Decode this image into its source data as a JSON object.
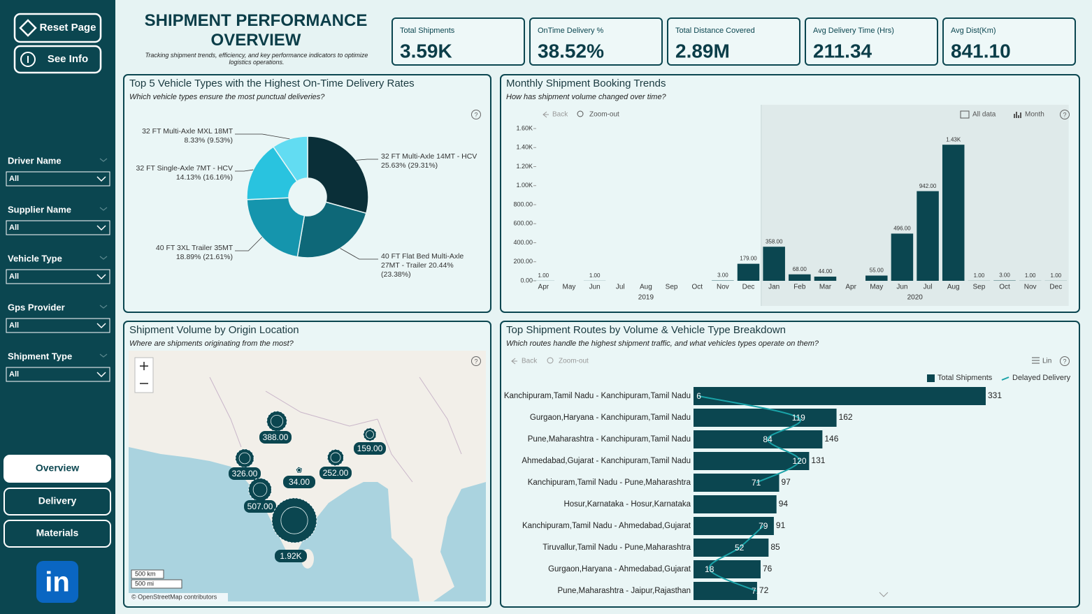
{
  "header": {
    "title": "SHIPMENT PERFORMANCE OVERVIEW",
    "subtitle": "Tracking shipment trends, efficiency, and key performance indicators to optimize logistics operations."
  },
  "help_icon": "?",
  "sidebar": {
    "buttons": [
      "Reset Page",
      "See Info"
    ],
    "filters": [
      {
        "label": "Driver Name",
        "value": "All"
      },
      {
        "label": "Supplier Name",
        "value": "All"
      },
      {
        "label": "Vehicle Type",
        "value": "All"
      },
      {
        "label": "Gps Provider",
        "value": "All"
      },
      {
        "label": "Shipment Type",
        "value": "All"
      }
    ],
    "nav": [
      "Overview",
      "Delivery",
      "Materials"
    ],
    "logo": "in"
  },
  "kpis": [
    {
      "label": "Total Shipments",
      "value": "3.59K"
    },
    {
      "label": "OnTime Delivery %",
      "value": "38.52%"
    },
    {
      "label": "Total Distance Covered",
      "value": "2.89M"
    },
    {
      "label": "Avg Delivery Time (Hrs)",
      "value": "211.34"
    },
    {
      "label": "Avg Dist(Km)",
      "value": "841.10"
    }
  ],
  "chart_data": [
    {
      "type": "pie",
      "title": "Top 5 Vehicle Types with the Highest On-Time Delivery Rates",
      "subtitle": "Which vehicle types ensure the most punctual deliveries?",
      "categories": [
        "32 FT Multi-Axle 14MT - HCV",
        "40 FT Flat Bed Multi-Axle 27MT - Trailer",
        "40 FT 3XL Trailer 35MT",
        "32 FT Single-Axle 7MT - HCV",
        "32 FT Multi-Axle MXL 18MT"
      ],
      "rate_labels": [
        "25.63%",
        "20.44%",
        "18.89%",
        "14.13%",
        "8.33%"
      ],
      "values": [
        29.31,
        23.38,
        21.61,
        16.16,
        9.53
      ],
      "value_labels": [
        "(29.31%)",
        "(23.38%)",
        "(21.61%)",
        "(16.16%)",
        "(9.53%)"
      ],
      "colors": [
        "#0a2f38",
        "#0e6878",
        "#1595ad",
        "#29c3df",
        "#62dcf2"
      ]
    },
    {
      "type": "bar",
      "title": "Monthly Shipment Booking Trends",
      "subtitle": "How has shipment volume changed over time?",
      "toolbar": [
        "Back",
        "Zoom-out",
        "All data",
        "Month"
      ],
      "categories": [
        "Apr",
        "May",
        "Jun",
        "Jul",
        "Aug",
        "Sep",
        "Oct",
        "Nov",
        "Dec",
        "Jan",
        "Feb",
        "Mar",
        "Apr",
        "May",
        "Jun",
        "Jul",
        "Aug",
        "Sep",
        "Oct",
        "Nov",
        "Dec"
      ],
      "years": [
        "2019",
        "2020"
      ],
      "values": [
        1,
        null,
        1,
        null,
        null,
        null,
        null,
        3,
        179,
        358,
        68,
        44,
        null,
        55,
        496,
        942,
        1430,
        1,
        3,
        1,
        1
      ],
      "value_labels": [
        "1.00",
        null,
        "1.00",
        null,
        null,
        null,
        null,
        "3.00",
        "179.00",
        "358.00",
        "68.00",
        "44.00",
        null,
        "55.00",
        "496.00",
        "942.00",
        "1.43K",
        "1.00",
        "3.00",
        "1.00",
        "1.00"
      ],
      "color": "#0b4650",
      "ylim": [
        0,
        1600
      ],
      "yticks": [
        {
          "value": 0,
          "label": "0.00"
        },
        {
          "value": 200,
          "label": "200.00"
        },
        {
          "value": 400,
          "label": "400.00"
        },
        {
          "value": 600,
          "label": "600.00"
        },
        {
          "value": 800,
          "label": "800.00"
        },
        {
          "value": 1000,
          "label": "1.00K"
        },
        {
          "value": 1200,
          "label": "1.20K"
        },
        {
          "value": 1400,
          "label": "1.40K"
        },
        {
          "value": 1600,
          "label": "1.60K"
        }
      ]
    },
    {
      "type": "map",
      "title": "Shipment Volume by Origin Location",
      "subtitle": "Where are shipments originating from the most?",
      "values": [
        388,
        159,
        326,
        34,
        252,
        507,
        1920
      ],
      "value_labels": [
        "388.00",
        "159.00",
        "326.00",
        "34.00",
        "252.00",
        "507.00",
        "1.92K"
      ],
      "color": "#0b4650",
      "scale": [
        "500 km",
        "500 mi"
      ],
      "attribution": "© OpenStreetMap contributors"
    },
    {
      "type": "bar-line",
      "title": "Top Shipment Routes by Volume & Vehicle Type Breakdown",
      "subtitle": "Which routes handle the highest shipment traffic, and what vehicles types operate on them?",
      "toolbar": [
        "Back",
        "Zoom-out",
        "Lin"
      ],
      "categories": [
        "Kanchipuram,Tamil Nadu - Kanchipuram,Tamil Nadu",
        "Gurgaon,Haryana - Kanchipuram,Tamil Nadu",
        "Pune,Maharashtra - Kanchipuram,Tamil Nadu",
        "Ahmedabad,Gujarat - Kanchipuram,Tamil Nadu",
        "Kanchipuram,Tamil Nadu - Pune,Maharashtra",
        "Hosur,Karnataka - Hosur,Karnataka",
        "Kanchipuram,Tamil Nadu - Ahmedabad,Gujarat",
        "Tiruvallur,Tamil Nadu - Pune,Maharashtra",
        "Gurgaon,Haryana - Ahmedabad,Gujarat",
        "Pune,Maharashtra - Jaipur,Rajasthan"
      ],
      "xlim": [
        0,
        430
      ],
      "series": [
        {
          "name": "Total Shipments",
          "color": "#0b4650",
          "values": [
            331,
            162,
            146,
            131,
            97,
            94,
            91,
            85,
            76,
            72
          ]
        },
        {
          "name": "Delayed Delivery",
          "color": "#1aa3a8",
          "values": [
            6,
            119,
            84,
            120,
            71,
            null,
            79,
            52,
            18,
            71
          ]
        }
      ]
    }
  ]
}
